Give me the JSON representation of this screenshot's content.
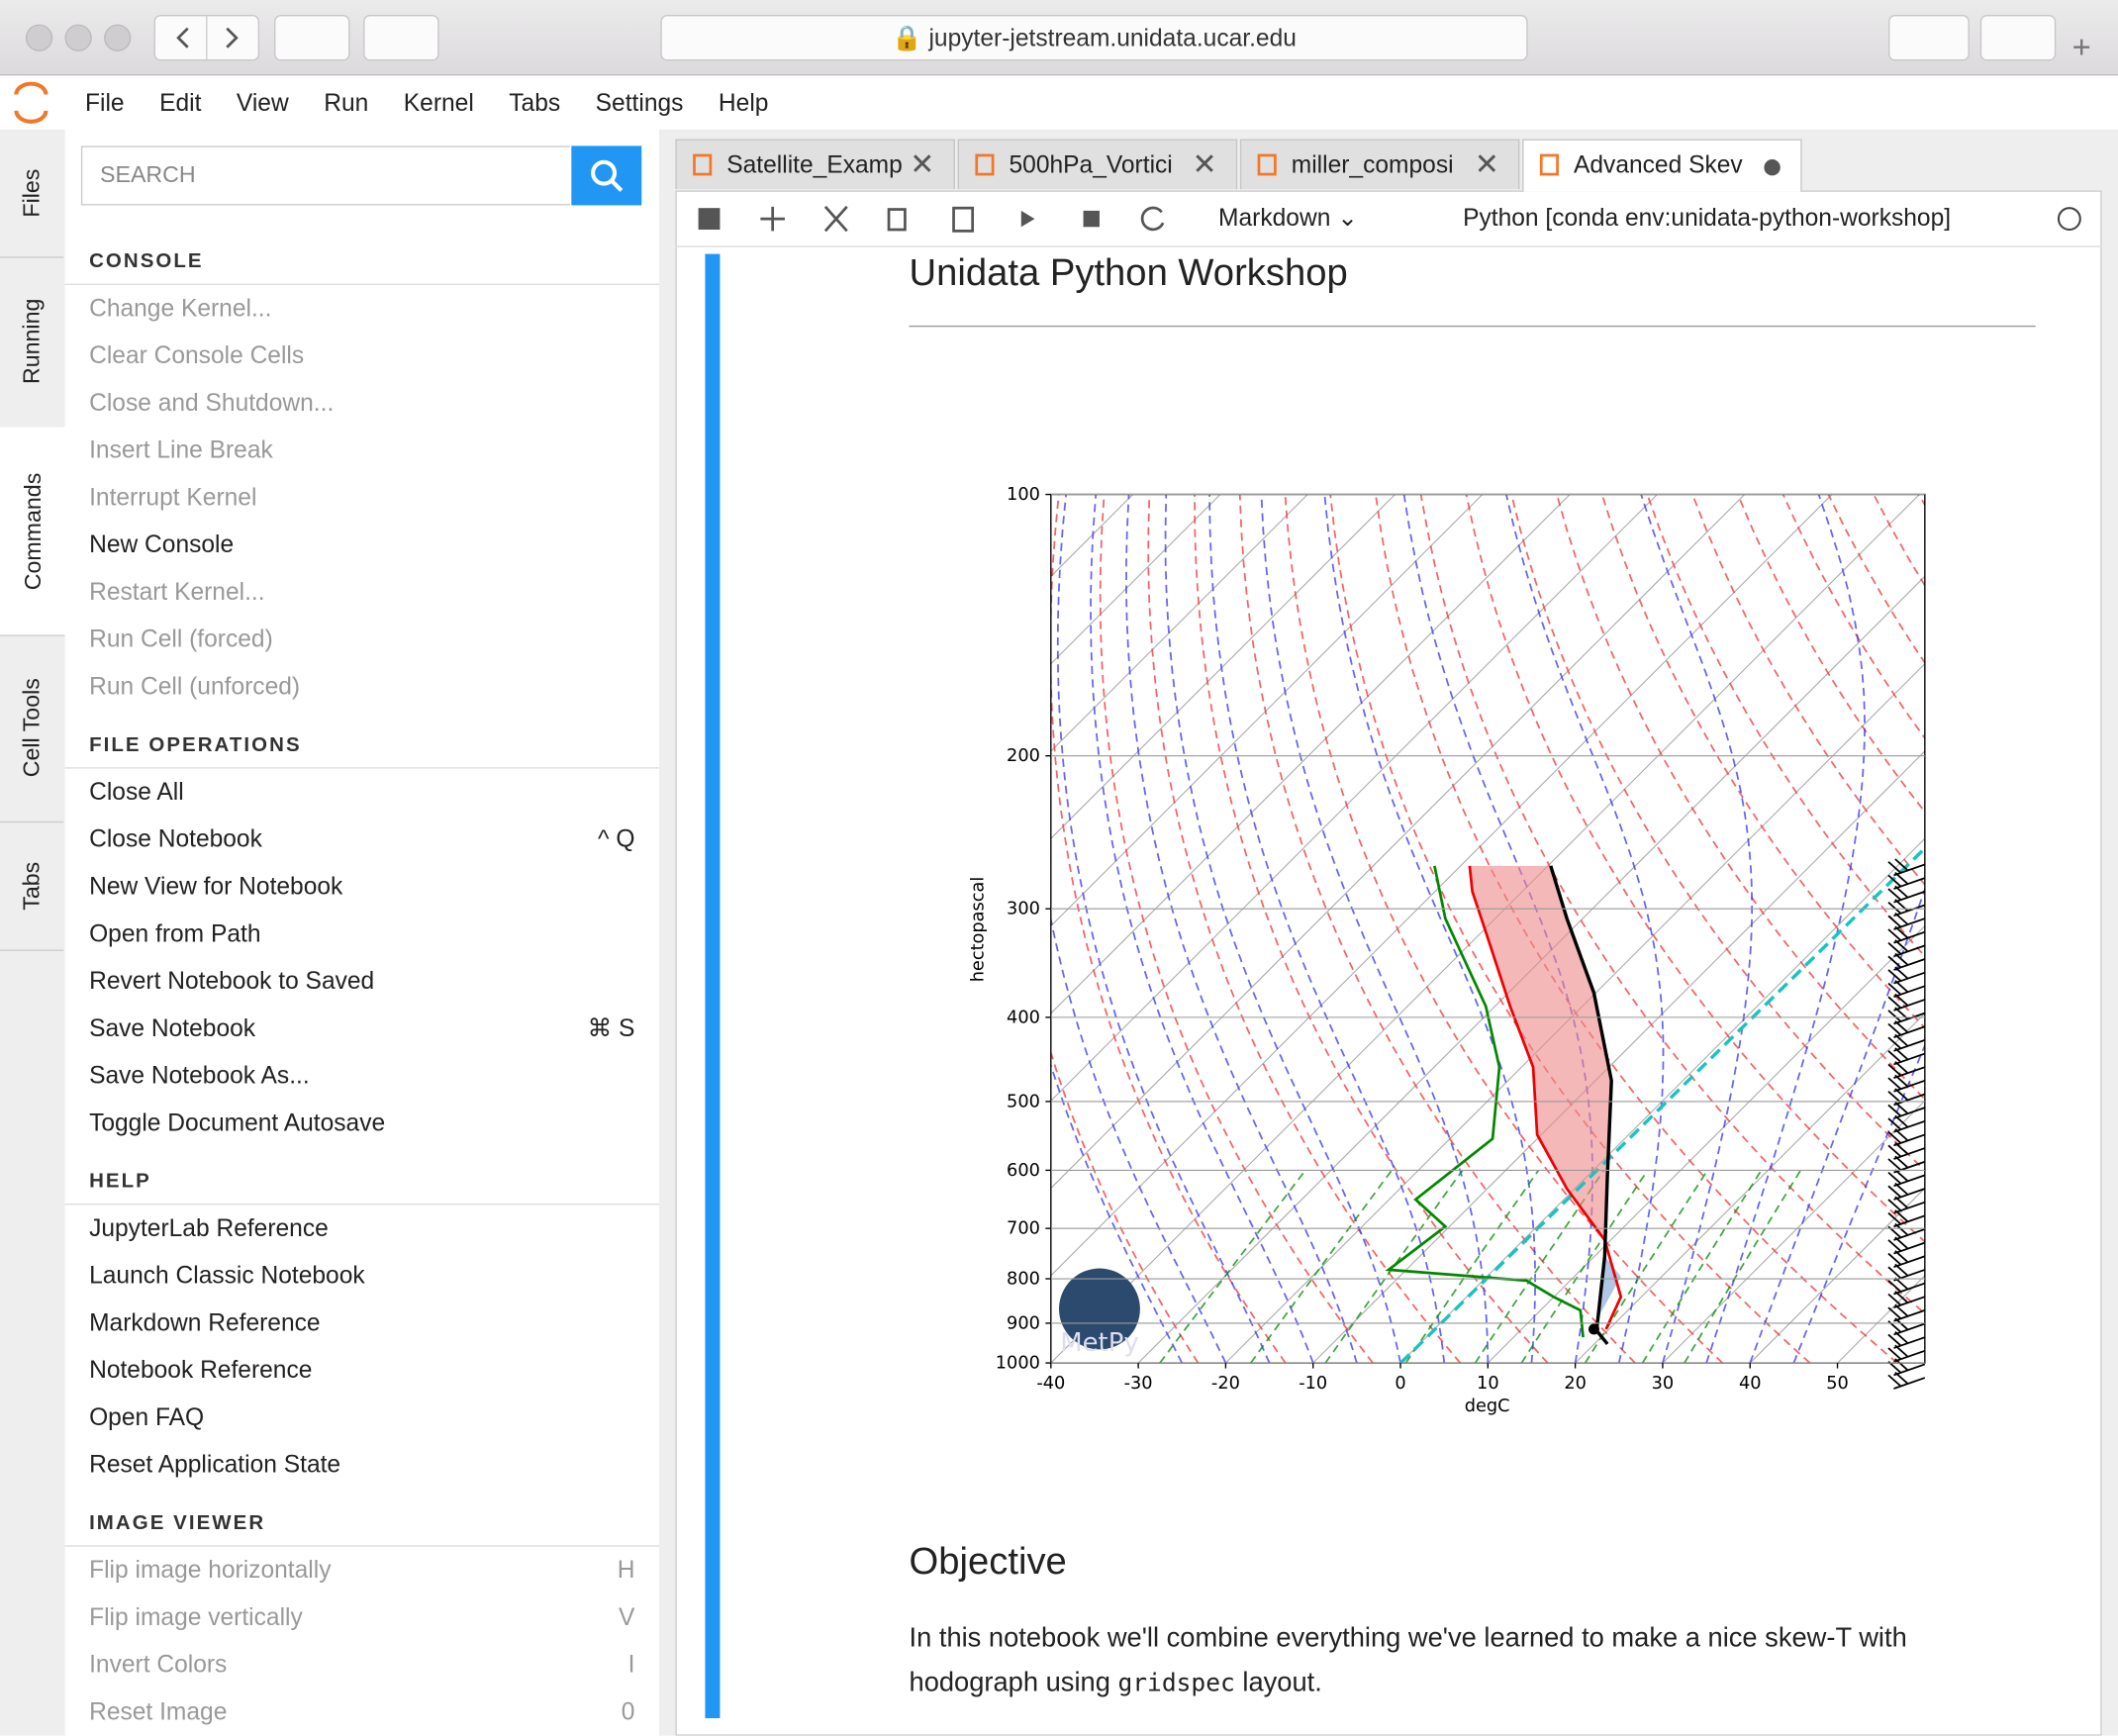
{
  "browser": {
    "url": "jupyter-jetstream.unidata.ucar.edu"
  },
  "menu": [
    "File",
    "Edit",
    "View",
    "Run",
    "Kernel",
    "Tabs",
    "Settings",
    "Help"
  ],
  "side_tabs": [
    "Files",
    "Running",
    "Commands",
    "Cell Tools",
    "Tabs"
  ],
  "search_placeholder": "SEARCH",
  "command_sections": [
    {
      "title": "CONSOLE",
      "items": [
        {
          "label": "Change Kernel...",
          "enabled": false
        },
        {
          "label": "Clear Console Cells",
          "enabled": false
        },
        {
          "label": "Close and Shutdown...",
          "enabled": false
        },
        {
          "label": "Insert Line Break",
          "enabled": false
        },
        {
          "label": "Interrupt Kernel",
          "enabled": false
        },
        {
          "label": "New Console",
          "enabled": true
        },
        {
          "label": "Restart Kernel...",
          "enabled": false
        },
        {
          "label": "Run Cell (forced)",
          "enabled": false
        },
        {
          "label": "Run Cell (unforced)",
          "enabled": false
        }
      ]
    },
    {
      "title": "FILE OPERATIONS",
      "items": [
        {
          "label": "Close All",
          "enabled": true
        },
        {
          "label": "Close Notebook",
          "enabled": true,
          "shortcut": "^ Q"
        },
        {
          "label": "New View for Notebook",
          "enabled": true
        },
        {
          "label": "Open from Path",
          "enabled": true
        },
        {
          "label": "Revert Notebook to Saved",
          "enabled": true
        },
        {
          "label": "Save Notebook",
          "enabled": true,
          "shortcut": "⌘ S"
        },
        {
          "label": "Save Notebook As...",
          "enabled": true
        },
        {
          "label": "Toggle Document Autosave",
          "enabled": true
        }
      ]
    },
    {
      "title": "HELP",
      "items": [
        {
          "label": "JupyterLab Reference",
          "enabled": true
        },
        {
          "label": "Launch Classic Notebook",
          "enabled": true
        },
        {
          "label": "Markdown Reference",
          "enabled": true
        },
        {
          "label": "Notebook Reference",
          "enabled": true
        },
        {
          "label": "Open FAQ",
          "enabled": true
        },
        {
          "label": "Reset Application State",
          "enabled": true
        }
      ]
    },
    {
      "title": "IMAGE VIEWER",
      "items": [
        {
          "label": "Flip image horizontally",
          "enabled": false,
          "shortcut": "H"
        },
        {
          "label": "Flip image vertically",
          "enabled": false,
          "shortcut": "V"
        },
        {
          "label": "Invert Colors",
          "enabled": false,
          "shortcut": "I"
        },
        {
          "label": "Reset Image",
          "enabled": false,
          "shortcut": "0"
        }
      ]
    }
  ],
  "doc_tabs": [
    "Satellite_Examp",
    "500hPa_Vortici",
    "miller_composi",
    "Advanced Skev"
  ],
  "cell_type": "Markdown",
  "kernel": "Python [conda env:unidata-python-workshop]",
  "notebook": {
    "heading": "Unidata Python Workshop",
    "objective_heading": "Objective",
    "paragraph_before": "In this notebook we'll combine everything we've learned to make a nice skew-T with hodograph using ",
    "code": "gridspec",
    "paragraph_after": " layout."
  },
  "figure": {
    "xlabel": "degC",
    "ylabel": "hectopascal",
    "logo": "MetPy",
    "log_y": true,
    "xlim": [
      -40,
      60
    ],
    "ylim": [
      1000,
      100
    ],
    "xticks": [
      -40,
      -30,
      -20,
      -10,
      0,
      10,
      20,
      30,
      40,
      50
    ],
    "yticks": [
      100,
      200,
      300,
      400,
      500,
      600,
      700,
      800,
      900,
      1000
    ]
  }
}
